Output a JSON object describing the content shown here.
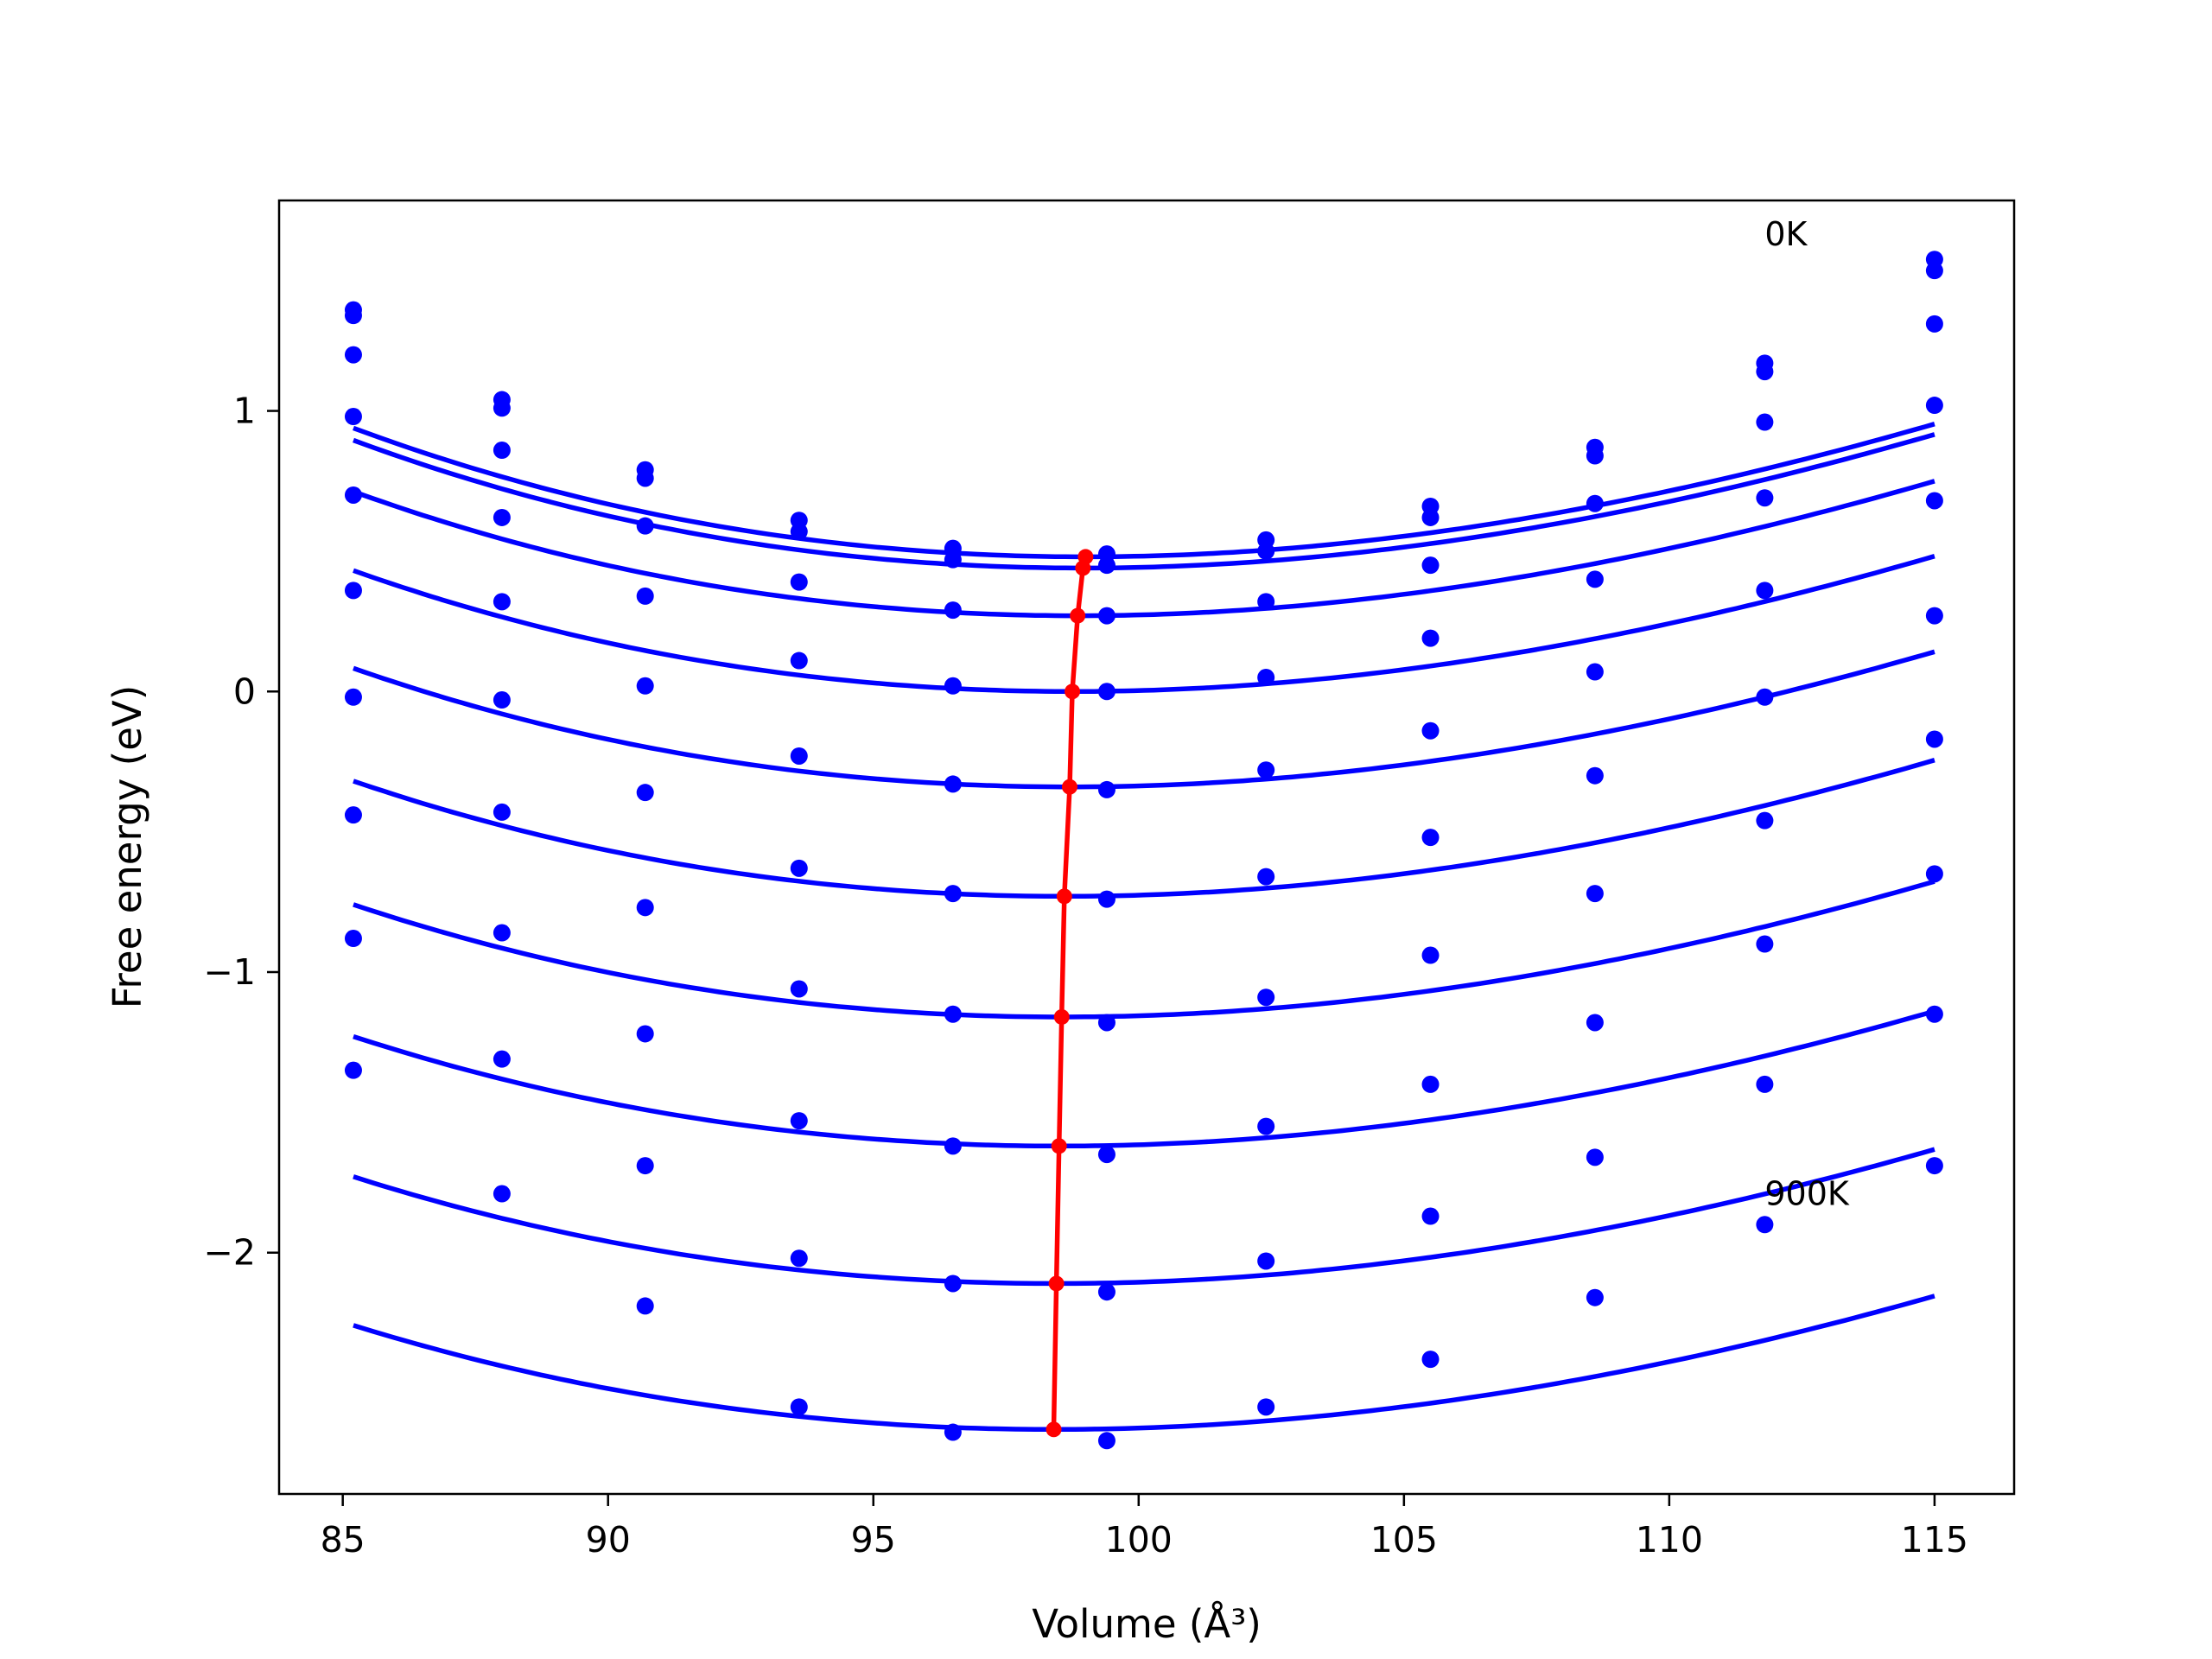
{
  "chart_data": {
    "type": "scatter",
    "xlabel": "Volume (Å³)",
    "ylabel": "Free energy (eV)",
    "xlim": [
      83.8,
      116.5
    ],
    "ylim": [
      -2.86,
      1.75
    ],
    "x_ticks": [
      85,
      90,
      95,
      100,
      105,
      110,
      115
    ],
    "x_tick_labels": [
      "85",
      "90",
      "95",
      "100",
      "105",
      "110",
      "115"
    ],
    "y_ticks": [
      -2,
      -1,
      0,
      1
    ],
    "y_tick_labels": [
      "−2",
      "−1",
      "0",
      "1"
    ],
    "grid": false,
    "legend": "none",
    "colors": {
      "points": "#0000ff",
      "fits": "#0000ff",
      "minima": "#ff0000"
    },
    "annotations": [
      {
        "text": "0K",
        "x": 111.8,
        "y": 1.63
      },
      {
        "text": "900K",
        "x": 111.8,
        "y": -1.79
      }
    ],
    "x": [
      85.2,
      88.0,
      90.7,
      93.6,
      96.5,
      99.4,
      102.4,
      105.5,
      108.6,
      111.8,
      115.0
    ],
    "series": [
      {
        "points": [
          1.36,
          1.04,
          0.79,
          0.61,
          0.51,
          0.49,
          0.54,
          0.66,
          0.87,
          1.17,
          1.54
        ],
        "fit": {
          "E0": 0.48,
          "V0": 99.0,
          "a": 0.00215,
          "b": 1.88e-05
        },
        "minimum": [
          99.0,
          0.48
        ]
      },
      {
        "points": [
          1.34,
          1.01,
          0.76,
          0.57,
          0.47,
          0.45,
          0.5,
          0.62,
          0.84,
          1.14,
          1.5
        ],
        "fit": {
          "E0": 0.44,
          "V0": 98.95,
          "a": 0.00215,
          "b": 1.88e-05
        },
        "minimum": [
          98.95,
          0.44
        ]
      },
      {
        "points": [
          1.2,
          0.86,
          0.59,
          0.39,
          0.29,
          0.27,
          0.32,
          0.45,
          0.67,
          0.96,
          1.31
        ],
        "fit": {
          "E0": 0.27,
          "V0": 98.85,
          "a": 0.00213,
          "b": 1.8e-05
        },
        "minimum": [
          98.85,
          0.27
        ]
      },
      {
        "points": [
          0.98,
          0.62,
          0.34,
          0.11,
          0.02,
          0.0,
          0.05,
          0.19,
          0.4,
          0.69,
          1.02
        ],
        "fit": {
          "E0": 0.0,
          "V0": 98.75,
          "a": 0.00211,
          "b": 1.75e-05
        },
        "minimum": [
          98.75,
          0.0
        ]
      },
      {
        "points": [
          0.7,
          0.32,
          0.02,
          -0.23,
          -0.33,
          -0.35,
          -0.28,
          -0.14,
          0.07,
          0.36,
          0.68
        ],
        "fit": {
          "E0": -0.34,
          "V0": 98.7,
          "a": 0.00209,
          "b": 1.7e-05
        },
        "minimum": [
          98.7,
          -0.34
        ]
      },
      {
        "points": [
          0.36,
          -0.03,
          -0.36,
          -0.63,
          -0.72,
          -0.74,
          -0.66,
          -0.52,
          -0.3,
          -0.02,
          0.27
        ],
        "fit": {
          "E0": -0.73,
          "V0": 98.6,
          "a": 0.00207,
          "b": 1.62e-05
        },
        "minimum": [
          98.6,
          -0.73
        ]
      },
      {
        "points": [
          -0.02,
          -0.43,
          -0.77,
          -1.06,
          -1.15,
          -1.18,
          -1.09,
          -0.94,
          -0.72,
          -0.46,
          -0.17
        ],
        "fit": {
          "E0": -1.16,
          "V0": 98.55,
          "a": 0.00204,
          "b": 1.55e-05
        },
        "minimum": [
          98.55,
          -1.16
        ]
      },
      {
        "points": [
          -0.44,
          -0.86,
          -1.22,
          -1.53,
          -1.62,
          -1.65,
          -1.55,
          -1.4,
          -1.18,
          -0.9,
          -0.65
        ],
        "fit": {
          "E0": -1.62,
          "V0": 98.5,
          "a": 0.00201,
          "b": 1.48e-05
        },
        "minimum": [
          98.5,
          -1.62
        ]
      },
      {
        "points": [
          -0.88,
          -1.31,
          -1.69,
          -2.02,
          -2.11,
          -2.14,
          -2.03,
          -1.87,
          -1.66,
          -1.4,
          -1.15
        ],
        "fit": {
          "E0": -2.11,
          "V0": 98.45,
          "a": 0.00198,
          "b": 1.42e-05
        },
        "minimum": [
          98.45,
          -2.11
        ]
      },
      {
        "points": [
          -1.35,
          -1.79,
          -2.19,
          -2.55,
          -2.64,
          -2.67,
          -2.55,
          -2.38,
          -2.16,
          -1.9,
          -1.69
        ],
        "fit": {
          "E0": -2.63,
          "V0": 98.4,
          "a": 0.00195,
          "b": 1.35e-05
        },
        "minimum": [
          98.4,
          -2.63
        ]
      }
    ]
  }
}
